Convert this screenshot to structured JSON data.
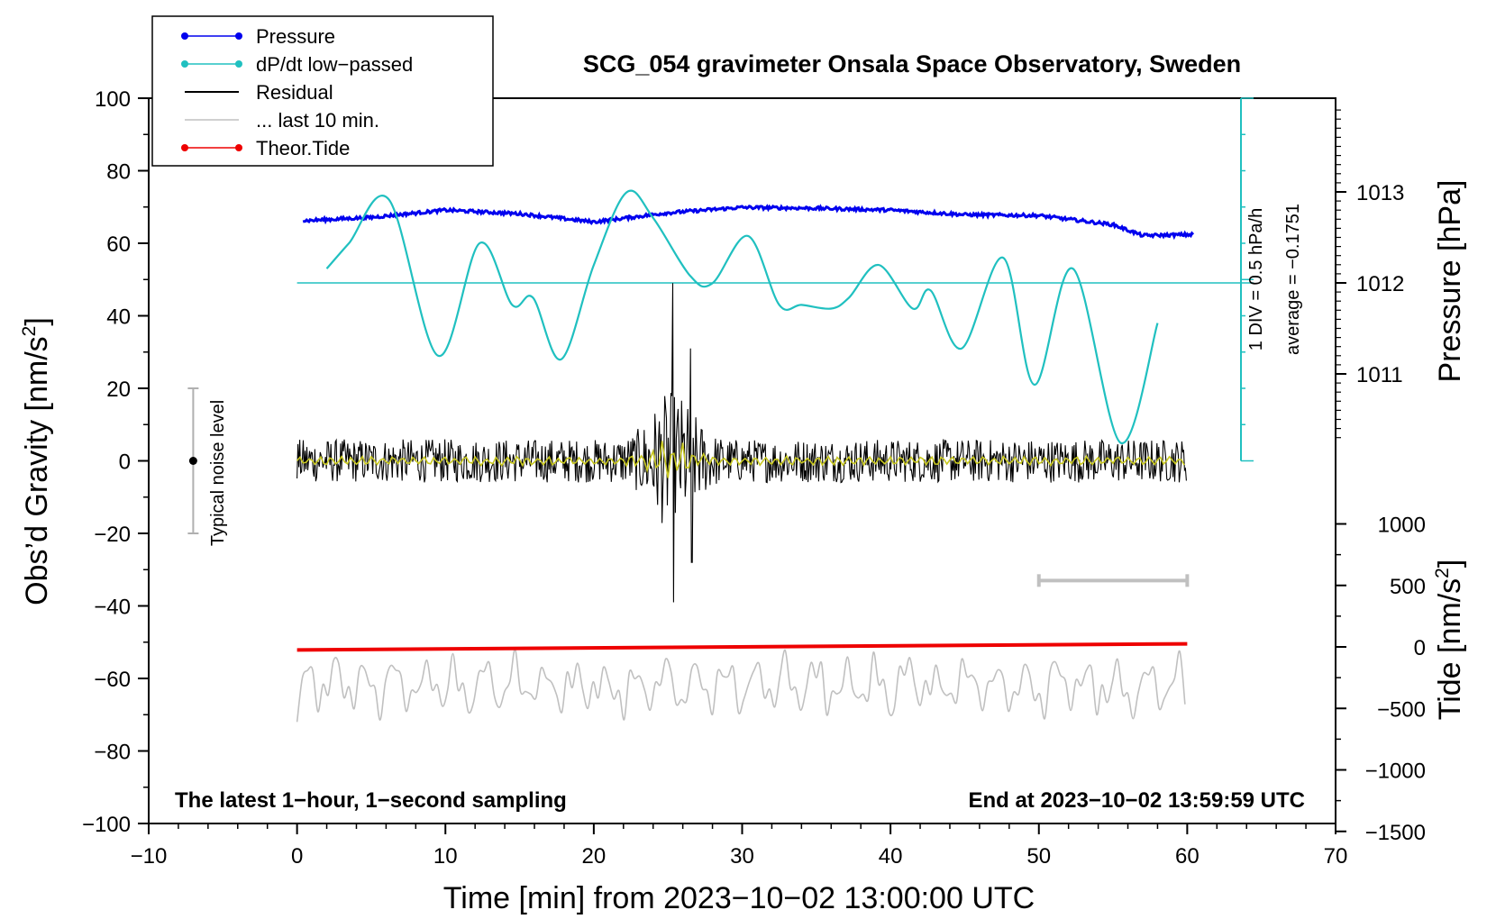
{
  "chart_data": {
    "type": "line",
    "title": "SCG_054 gravimeter Onsala Space Observatory, Sweden",
    "xlabel": "Time [min] from 2023−10−02 13:00:00 UTC",
    "ylabel_left": "Obs’d Gravity [nm/s",
    "ylabel_left_sup": "2",
    "ylabel_left_close": "]",
    "ylabel_pressure": "Pressure [hPa]",
    "ylabel_tide": "Tide [nm/s",
    "ylabel_tide_sup": "2",
    "ylabel_tide_close": "]",
    "xlim": [
      -10,
      70
    ],
    "ylim": [
      -100,
      100
    ],
    "x_ticks": [
      -10,
      0,
      10,
      20,
      30,
      40,
      50,
      60,
      70
    ],
    "x_tick_labels": [
      "−10",
      "0",
      "10",
      "20",
      "30",
      "40",
      "50",
      "60",
      "70"
    ],
    "y_ticks": [
      -100,
      -80,
      -60,
      -40,
      -20,
      0,
      20,
      40,
      60,
      80,
      100
    ],
    "y_tick_labels": [
      "−100",
      "−80",
      "−60",
      "−40",
      "−20",
      "0",
      "20",
      "40",
      "60",
      "80",
      "100"
    ],
    "pressure_ticks": [
      1011,
      1012,
      1013
    ],
    "pressure_tick_labels": [
      "1011",
      "1012",
      "1013"
    ],
    "tide_ticks": [
      1000,
      500,
      0,
      -500,
      -1000,
      -1500
    ],
    "tide_tick_labels": [
      "1000",
      "500",
      "0",
      "−500",
      "−1000",
      "−1500"
    ],
    "legend": [
      {
        "label": "Pressure",
        "color": "#0000ee",
        "marker": true
      },
      {
        "label": "dP/dt low−passed",
        "color": "#20c0c0",
        "marker": true
      },
      {
        "label": "Residual",
        "color": "#000000",
        "marker": false
      },
      {
        "label": "... last 10 min.",
        "color": "#c0c0c0",
        "marker": false
      },
      {
        "label": "Theor.Tide",
        "color": "#ee0000",
        "marker": true
      }
    ],
    "series": [
      {
        "name": "Pressure",
        "color": "#0000ee",
        "unit": "hPa",
        "x": [
          0,
          5,
          10,
          15,
          20,
          25,
          30,
          35,
          40,
          45,
          50,
          55,
          57,
          60
        ],
        "values": [
          1012.68,
          1012.72,
          1012.8,
          1012.76,
          1012.67,
          1012.77,
          1012.83,
          1012.82,
          1012.8,
          1012.75,
          1012.74,
          1012.64,
          1012.52,
          1012.53
        ]
      },
      {
        "name": "dP/dt low-passed",
        "color": "#20c0c0",
        "unit": "nm/s2 scale",
        "x": [
          2,
          3.5,
          6.2,
          9.5,
          12.3,
          14.5,
          15.9,
          17.8,
          20,
          22.2,
          24,
          26.5,
          28,
          30.4,
          32.5,
          34,
          36,
          37.2,
          39.2,
          41.5,
          42.7,
          44.8,
          47.6,
          49.7,
          52.3,
          55.5,
          58
        ],
        "values": [
          53,
          60,
          72,
          29,
          60,
          43,
          45,
          28,
          54,
          74,
          67,
          51,
          49,
          62,
          43,
          43,
          42,
          45,
          54,
          42,
          47,
          31,
          56,
          21,
          53,
          5,
          38
        ]
      },
      {
        "name": "Residual",
        "color": "#000000",
        "unit": "nm/s2",
        "x_range": [
          0,
          60
        ],
        "noise_amp": 6,
        "event_at": 25.3,
        "event_max": 49,
        "event_min": -39
      },
      {
        "name": "Theor.Tide",
        "color": "#ee0000",
        "unit": "nm/s2",
        "x": [
          0,
          60
        ],
        "values": [
          -25,
          25
        ]
      },
      {
        "name": "Last 10 min.",
        "color": "#c0c0c0",
        "unit": "nm/s2",
        "x_range": [
          0,
          60
        ],
        "center": -62
      }
    ],
    "pressure_ref_line": 1012,
    "dpdt_axis_label": "1 DIV = 0.5 hPa/h",
    "dpdt_average": "average = −0.1751",
    "noise_label": "Typical noise level",
    "noise_range": [
      -20,
      20
    ],
    "last10_bar": [
      50,
      60
    ],
    "note_left": "The latest 1−hour, 1−second sampling",
    "note_right": "End at 2023−10−02 13:59:59 UTC"
  }
}
